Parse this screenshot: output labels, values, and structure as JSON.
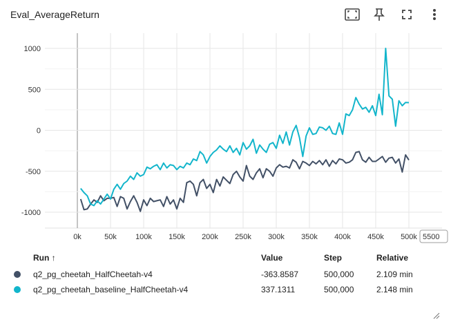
{
  "header": {
    "title": "Eval_AverageReturn",
    "icons": [
      "fit-domain-icon",
      "pin-icon",
      "fullscreen-icon",
      "more-vert-icon"
    ]
  },
  "chart_data": {
    "type": "line",
    "xlim": [
      0,
      510000
    ],
    "ylim": [
      -1100,
      1100
    ],
    "x_ticks": [
      {
        "label": "0k",
        "value": 0
      },
      {
        "label": "50k",
        "value": 50000
      },
      {
        "label": "100k",
        "value": 100000
      },
      {
        "label": "150k",
        "value": 150000
      },
      {
        "label": "200k",
        "value": 200000
      },
      {
        "label": "250k",
        "value": 250000
      },
      {
        "label": "300k",
        "value": 300000
      },
      {
        "label": "350k",
        "value": 350000
      },
      {
        "label": "400k",
        "value": 400000
      },
      {
        "label": "450k",
        "value": 450000
      },
      {
        "label": "500k",
        "value": 500000
      }
    ],
    "x_edge_label": "5500",
    "y_ticks": [
      {
        "label": "1000",
        "value": 1000
      },
      {
        "label": "500",
        "value": 500
      },
      {
        "label": "0",
        "value": 0
      },
      {
        "label": "-500",
        "value": -500
      },
      {
        "label": "-1000",
        "value": -1000
      }
    ],
    "series": [
      {
        "name": "q2_pg_cheetah_HalfCheetah-v4",
        "color": "#425066",
        "x": [
          5000,
          10000,
          15000,
          20000,
          25000,
          30000,
          35000,
          40000,
          45000,
          50000,
          55000,
          60000,
          65000,
          70000,
          75000,
          80000,
          85000,
          90000,
          95000,
          100000,
          105000,
          110000,
          115000,
          120000,
          125000,
          130000,
          135000,
          140000,
          145000,
          150000,
          155000,
          160000,
          165000,
          170000,
          175000,
          180000,
          185000,
          190000,
          195000,
          200000,
          205000,
          210000,
          215000,
          220000,
          225000,
          230000,
          235000,
          240000,
          245000,
          250000,
          255000,
          260000,
          265000,
          270000,
          275000,
          280000,
          285000,
          290000,
          295000,
          300000,
          305000,
          310000,
          315000,
          320000,
          325000,
          330000,
          335000,
          340000,
          345000,
          350000,
          355000,
          360000,
          365000,
          370000,
          375000,
          380000,
          385000,
          390000,
          395000,
          400000,
          405000,
          410000,
          415000,
          420000,
          425000,
          430000,
          435000,
          440000,
          445000,
          450000,
          455000,
          460000,
          465000,
          470000,
          475000,
          480000,
          485000,
          490000,
          495000,
          500000
        ],
        "y": [
          -840,
          -970,
          -960,
          -900,
          -850,
          -880,
          -800,
          -860,
          -830,
          -830,
          -820,
          -930,
          -810,
          -830,
          -960,
          -870,
          -800,
          -880,
          -990,
          -850,
          -920,
          -830,
          -870,
          -860,
          -850,
          -930,
          -810,
          -900,
          -850,
          -960,
          -830,
          -880,
          -640,
          -620,
          -660,
          -800,
          -640,
          -600,
          -710,
          -660,
          -760,
          -600,
          -680,
          -570,
          -610,
          -650,
          -540,
          -500,
          -570,
          -620,
          -430,
          -560,
          -600,
          -520,
          -470,
          -580,
          -470,
          -500,
          -560,
          -460,
          -420,
          -450,
          -440,
          -460,
          -360,
          -390,
          -470,
          -380,
          -400,
          -430,
          -380,
          -410,
          -370,
          -420,
          -360,
          -440,
          -370,
          -410,
          -350,
          -360,
          -400,
          -390,
          -360,
          -270,
          -260,
          -360,
          -390,
          -330,
          -380,
          -380,
          -350,
          -320,
          -390,
          -340,
          -330,
          -400,
          -350,
          -510,
          -300,
          -363.8587
        ]
      },
      {
        "name": "q2_pg_cheetah_baseline_HalfCheetah-v4",
        "color": "#12b5cb",
        "x": [
          5000,
          10000,
          15000,
          20000,
          25000,
          30000,
          35000,
          40000,
          45000,
          50000,
          55000,
          60000,
          65000,
          70000,
          75000,
          80000,
          85000,
          90000,
          95000,
          100000,
          105000,
          110000,
          115000,
          120000,
          125000,
          130000,
          135000,
          140000,
          145000,
          150000,
          155000,
          160000,
          165000,
          170000,
          175000,
          180000,
          185000,
          190000,
          195000,
          200000,
          205000,
          210000,
          215000,
          220000,
          225000,
          230000,
          235000,
          240000,
          245000,
          250000,
          255000,
          260000,
          265000,
          270000,
          275000,
          280000,
          285000,
          290000,
          295000,
          300000,
          305000,
          310000,
          315000,
          320000,
          325000,
          330000,
          335000,
          340000,
          345000,
          350000,
          355000,
          360000,
          365000,
          370000,
          375000,
          380000,
          385000,
          390000,
          395000,
          400000,
          405000,
          410000,
          415000,
          420000,
          425000,
          430000,
          435000,
          440000,
          445000,
          450000,
          455000,
          460000,
          465000,
          470000,
          475000,
          480000,
          485000,
          490000,
          495000,
          500000
        ],
        "y": [
          -710,
          -760,
          -800,
          -900,
          -920,
          -860,
          -900,
          -840,
          -780,
          -840,
          -720,
          -660,
          -720,
          -650,
          -620,
          -560,
          -600,
          -520,
          -560,
          -540,
          -450,
          -470,
          -440,
          -420,
          -480,
          -400,
          -460,
          -420,
          -430,
          -480,
          -440,
          -460,
          -400,
          -420,
          -350,
          -370,
          -260,
          -300,
          -400,
          -320,
          -270,
          -240,
          -190,
          -230,
          -260,
          -190,
          -270,
          -220,
          -300,
          -150,
          -230,
          -190,
          -110,
          -280,
          -180,
          -230,
          -270,
          -170,
          -150,
          -220,
          -60,
          -160,
          -20,
          -180,
          -20,
          60,
          -90,
          -320,
          -70,
          30,
          -50,
          -40,
          40,
          30,
          0,
          50,
          -40,
          -50,
          90,
          -50,
          200,
          180,
          250,
          400,
          320,
          260,
          280,
          220,
          300,
          180,
          440,
          190,
          1000,
          420,
          380,
          50,
          360,
          300,
          340,
          337.1311
        ]
      }
    ],
    "legend": {
      "columns": [
        "Run ↑",
        "Value",
        "Step",
        "Relative"
      ],
      "rows": [
        {
          "name": "q2_pg_cheetah_HalfCheetah-v4",
          "value": "-363.8587",
          "step": "500,000",
          "relative": "2.109 min"
        },
        {
          "name": "q2_pg_cheetah_baseline_HalfCheetah-v4",
          "value": "337.1311",
          "step": "500,000",
          "relative": "2.148 min"
        }
      ]
    }
  }
}
